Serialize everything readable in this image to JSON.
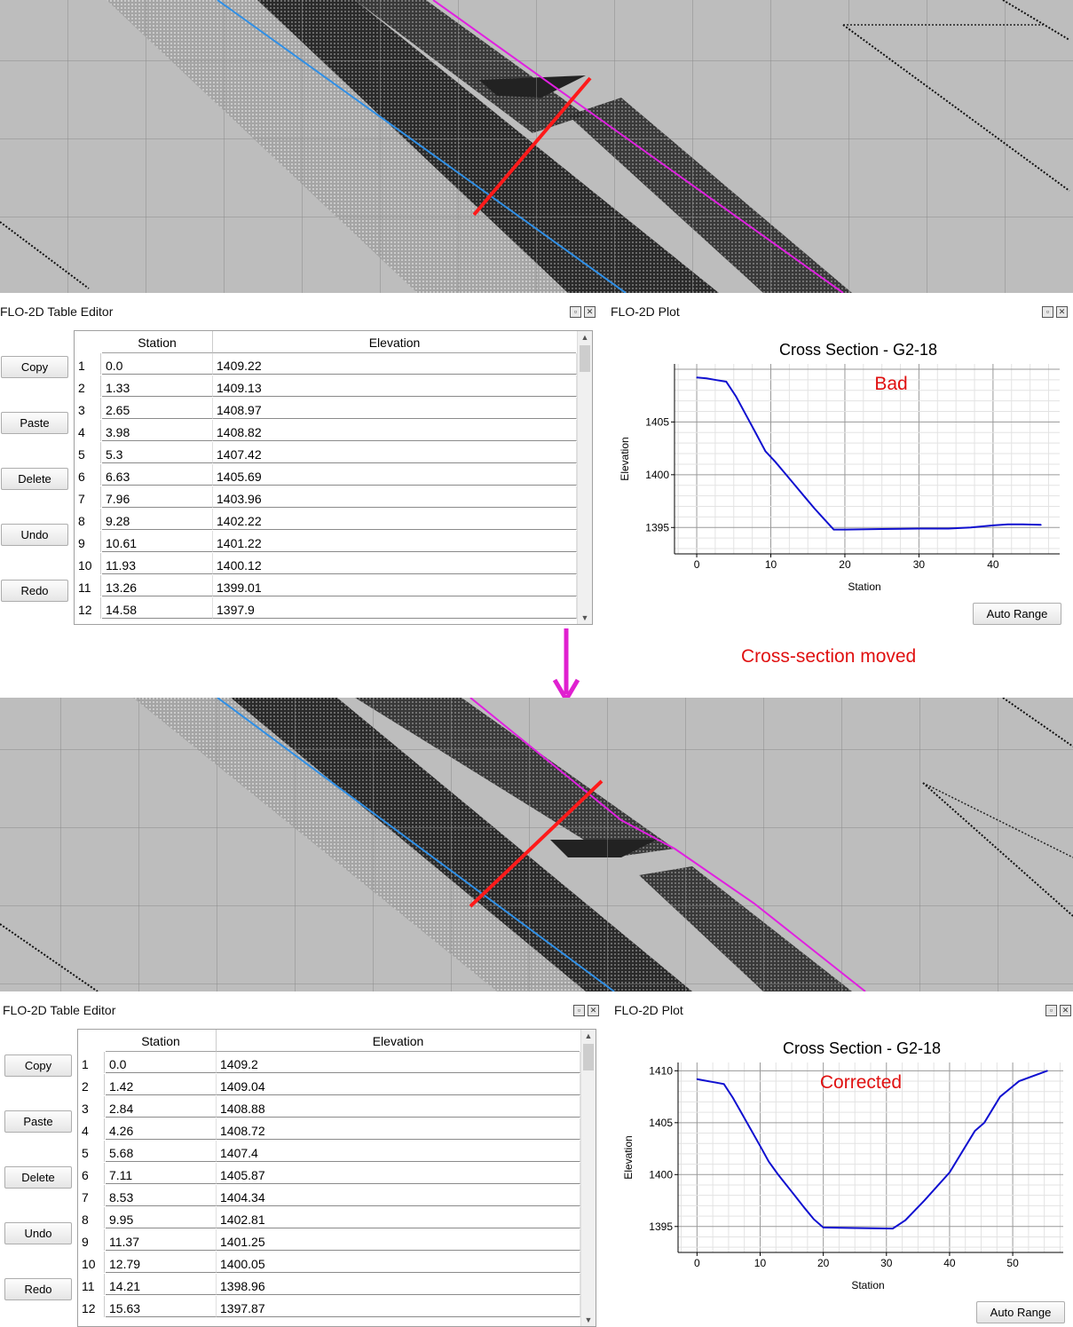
{
  "top": {
    "table_editor": {
      "title": "FLO-2D Table Editor",
      "buttons": [
        "Copy",
        "Paste",
        "Delete",
        "Undo",
        "Redo"
      ],
      "columns": [
        "Station",
        "Elevation"
      ],
      "rows": [
        [
          "1",
          "0.0",
          "1409.22"
        ],
        [
          "2",
          "1.33",
          "1409.13"
        ],
        [
          "3",
          "2.65",
          "1408.97"
        ],
        [
          "4",
          "3.98",
          "1408.82"
        ],
        [
          "5",
          "5.3",
          "1407.42"
        ],
        [
          "6",
          "6.63",
          "1405.69"
        ],
        [
          "7",
          "7.96",
          "1403.96"
        ],
        [
          "8",
          "9.28",
          "1402.22"
        ],
        [
          "9",
          "10.61",
          "1401.22"
        ],
        [
          "10",
          "11.93",
          "1400.12"
        ],
        [
          "11",
          "13.26",
          "1399.01"
        ],
        [
          "12",
          "14.58",
          "1397.9"
        ]
      ]
    },
    "plot": {
      "title": "FLO-2D Plot",
      "auto_range_label": "Auto Range"
    }
  },
  "middle": {
    "arrow_color": "#e020d0",
    "label": "Cross-section moved"
  },
  "bottom": {
    "table_editor": {
      "title": "FLO-2D Table Editor",
      "buttons": [
        "Copy",
        "Paste",
        "Delete",
        "Undo",
        "Redo"
      ],
      "columns": [
        "Station",
        "Elevation"
      ],
      "rows": [
        [
          "1",
          "0.0",
          "1409.2"
        ],
        [
          "2",
          "1.42",
          "1409.04"
        ],
        [
          "3",
          "2.84",
          "1408.88"
        ],
        [
          "4",
          "4.26",
          "1408.72"
        ],
        [
          "5",
          "5.68",
          "1407.4"
        ],
        [
          "6",
          "7.11",
          "1405.87"
        ],
        [
          "7",
          "8.53",
          "1404.34"
        ],
        [
          "8",
          "9.95",
          "1402.81"
        ],
        [
          "9",
          "11.37",
          "1401.25"
        ],
        [
          "10",
          "12.79",
          "1400.05"
        ],
        [
          "11",
          "14.21",
          "1398.96"
        ],
        [
          "12",
          "15.63",
          "1397.87"
        ]
      ]
    },
    "plot": {
      "title": "FLO-2D Plot",
      "auto_range_label": "Auto Range"
    }
  },
  "colors": {
    "line": "#1010d0",
    "annotation": "#e01010",
    "xsection": "#ff1a1a",
    "boundary_pink": "#e020e0",
    "boundary_blue": "#2f8fe6"
  },
  "chart_data": [
    {
      "type": "line",
      "title": "Cross Section - G2-18",
      "annotation": "Bad",
      "xlabel": "Station",
      "ylabel": "Elevation",
      "xlim": [
        -3,
        49
      ],
      "ylim": [
        1392.5,
        1410.5
      ],
      "xticks": [
        0,
        10,
        20,
        30,
        40
      ],
      "yticks": [
        1395,
        1400,
        1405
      ],
      "grid": true,
      "series": [
        {
          "x": [
            0,
            1.33,
            2.65,
            3.98,
            5.3,
            6.63,
            7.96,
            9.28,
            10.61,
            11.93,
            13.26,
            14.58,
            15.9,
            17.2,
            18.5,
            20,
            25,
            30,
            34,
            37,
            40,
            42,
            44,
            46.5
          ],
          "y": [
            1409.22,
            1409.13,
            1408.97,
            1408.82,
            1407.42,
            1405.69,
            1403.96,
            1402.22,
            1401.22,
            1400.12,
            1399.01,
            1397.9,
            1396.8,
            1395.8,
            1394.8,
            1394.8,
            1394.85,
            1394.9,
            1394.9,
            1395.0,
            1395.2,
            1395.3,
            1395.3,
            1395.25
          ]
        }
      ]
    },
    {
      "type": "line",
      "title": "Cross Section - G2-18",
      "annotation": "Corrected",
      "xlabel": "Station",
      "ylabel": "Elevation",
      "xlim": [
        -3,
        58
      ],
      "ylim": [
        1392.5,
        1410.8
      ],
      "xticks": [
        0,
        10,
        20,
        30,
        40,
        50
      ],
      "yticks": [
        1395,
        1400,
        1405,
        1410
      ],
      "grid": true,
      "series": [
        {
          "x": [
            0,
            1.42,
            2.84,
            4.26,
            5.68,
            7.11,
            8.53,
            9.95,
            11.37,
            12.79,
            14.21,
            15.63,
            17.05,
            18.5,
            20,
            25,
            31,
            33,
            36,
            40,
            44,
            45.5,
            48,
            51,
            55.5
          ],
          "y": [
            1409.2,
            1409.04,
            1408.88,
            1408.72,
            1407.4,
            1405.87,
            1404.34,
            1402.81,
            1401.25,
            1400.05,
            1398.96,
            1397.87,
            1396.77,
            1395.7,
            1394.9,
            1394.85,
            1394.8,
            1395.6,
            1397.5,
            1400.2,
            1404.2,
            1405,
            1407.5,
            1409,
            1410
          ]
        }
      ]
    }
  ]
}
